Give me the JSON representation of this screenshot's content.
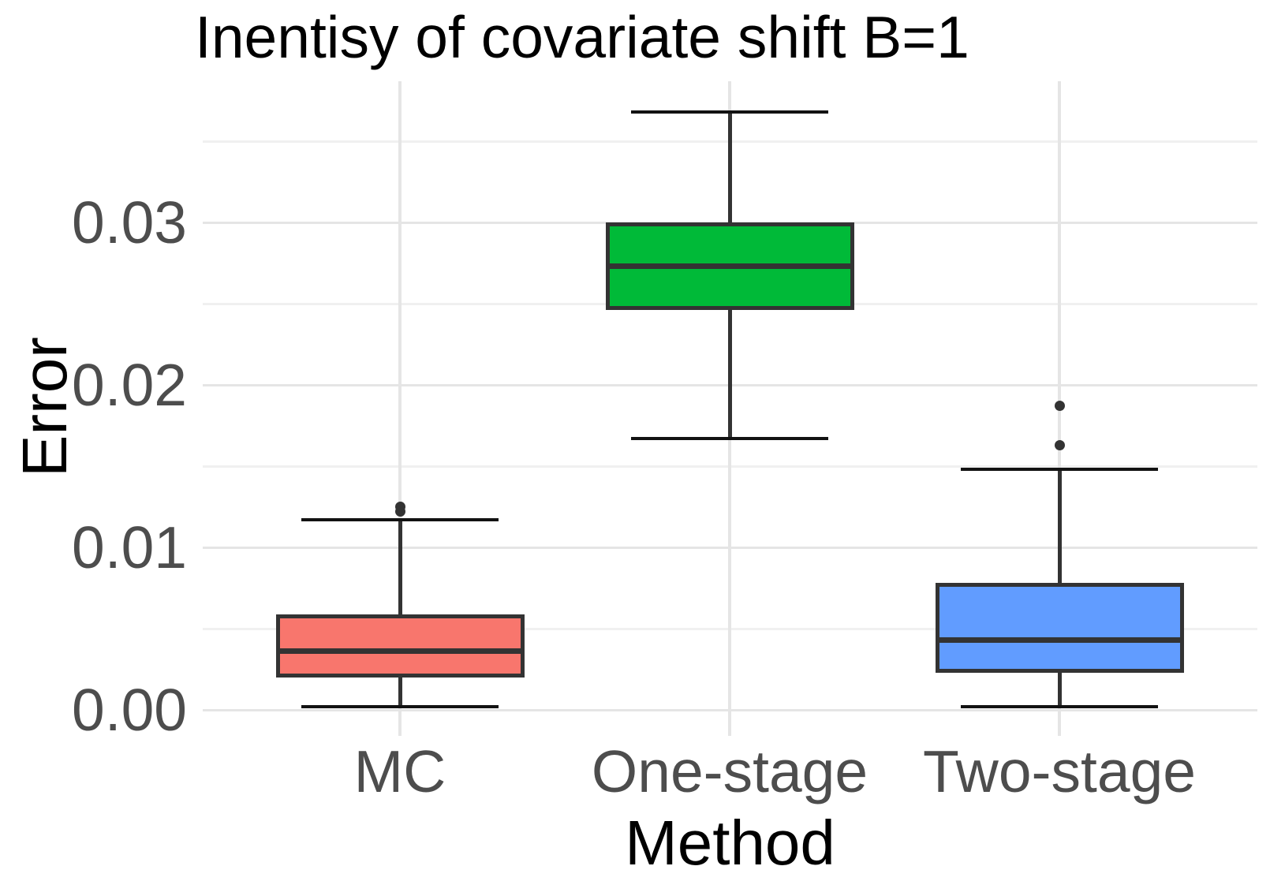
{
  "chart_data": {
    "type": "boxplot",
    "title": "Inentisy of covariate shift B=1",
    "xlabel": "Method",
    "ylabel": "Error",
    "categories": [
      "MC",
      "One-stage",
      "Two-stage"
    ],
    "y_tick_labels": [
      "0.00",
      "0.01",
      "0.02",
      "0.03"
    ],
    "y_ticks": [
      0,
      0.01,
      0.02,
      0.03
    ],
    "y_minor_ticks": [
      0.005,
      0.015,
      0.025,
      0.035
    ],
    "ylim": [
      -0.0016,
      0.0387
    ],
    "grid": true,
    "legend": "none",
    "series": [
      {
        "name": "MC",
        "fill": "#F8766D",
        "lower_whisker": 0.0002,
        "q1": 0.002,
        "median": 0.0036,
        "q3": 0.0059,
        "upper_whisker": 0.0117,
        "outliers": [
          0.0122,
          0.0125
        ]
      },
      {
        "name": "One-stage",
        "fill": "#00BA38",
        "lower_whisker": 0.0167,
        "q1": 0.0246,
        "median": 0.0273,
        "q3": 0.03,
        "upper_whisker": 0.0368,
        "outliers": []
      },
      {
        "name": "Two-stage",
        "fill": "#619CFF",
        "lower_whisker": 0.0002,
        "q1": 0.0023,
        "median": 0.0043,
        "q3": 0.0078,
        "upper_whisker": 0.0148,
        "outliers": [
          0.0163,
          0.0187
        ]
      }
    ],
    "colors": {
      "box_border": "#333333",
      "whisker": "#333333",
      "whisker_cap": "#121212",
      "outlier": "#333333",
      "grid_major": "#E5E5E5",
      "grid_minor": "#F0F0F0",
      "tick_label": "#4d4d4d",
      "text": "#000000"
    }
  }
}
